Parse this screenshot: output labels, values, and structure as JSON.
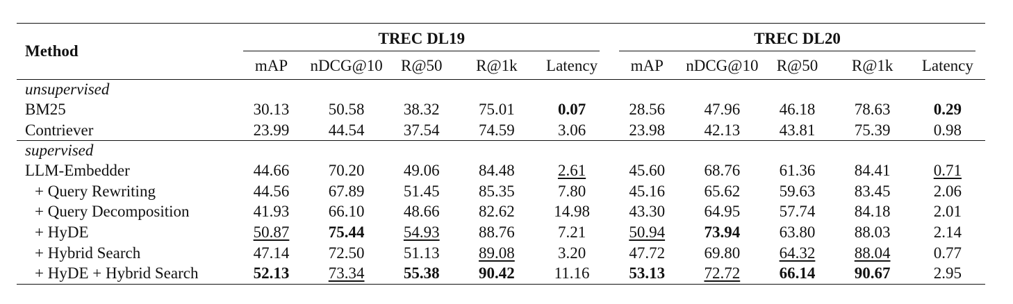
{
  "table": {
    "method_header": "Method",
    "groups": [
      "TREC DL19",
      "TREC DL20"
    ],
    "metrics": [
      "mAP",
      "nDCG@10",
      "R@50",
      "R@1k",
      "Latency",
      "mAP",
      "nDCG@10",
      "R@50",
      "R@1k",
      "Latency"
    ],
    "sections": [
      {
        "name": "unsupervised",
        "rows": [
          {
            "method": "BM25",
            "values": [
              "30.13",
              "50.58",
              "38.32",
              "75.01",
              "0.07",
              "28.56",
              "47.96",
              "46.18",
              "78.63",
              "0.29"
            ],
            "bold": [
              4,
              9
            ],
            "underline": []
          },
          {
            "method": "Contriever",
            "values": [
              "23.99",
              "44.54",
              "37.54",
              "74.59",
              "3.06",
              "23.98",
              "42.13",
              "43.81",
              "75.39",
              "0.98"
            ],
            "bold": [],
            "underline": []
          }
        ]
      },
      {
        "name": "supervised",
        "rows": [
          {
            "method": "LLM-Embedder",
            "values": [
              "44.66",
              "70.20",
              "49.06",
              "84.48",
              "2.61",
              "45.60",
              "68.76",
              "61.36",
              "84.41",
              "0.71"
            ],
            "bold": [],
            "underline": [
              4,
              9
            ]
          },
          {
            "method": "+ Query Rewriting",
            "values": [
              "44.56",
              "67.89",
              "51.45",
              "85.35",
              "7.80",
              "45.16",
              "65.62",
              "59.63",
              "83.45",
              "2.06"
            ],
            "bold": [],
            "underline": []
          },
          {
            "method": "+ Query Decomposition",
            "values": [
              "41.93",
              "66.10",
              "48.66",
              "82.62",
              "14.98",
              "43.30",
              "64.95",
              "57.74",
              "84.18",
              "2.01"
            ],
            "bold": [],
            "underline": []
          },
          {
            "method": "+ HyDE",
            "values": [
              "50.87",
              "75.44",
              "54.93",
              "88.76",
              "7.21",
              "50.94",
              "73.94",
              "63.80",
              "88.03",
              "2.14"
            ],
            "bold": [
              1,
              6
            ],
            "underline": [
              0,
              2,
              5
            ]
          },
          {
            "method": "+ Hybrid Search",
            "values": [
              "47.14",
              "72.50",
              "51.13",
              "89.08",
              "3.20",
              "47.72",
              "69.80",
              "64.32",
              "88.04",
              "0.77"
            ],
            "bold": [],
            "underline": [
              3,
              7,
              8
            ]
          },
          {
            "method": "+ HyDE + Hybrid Search",
            "values": [
              "52.13",
              "73.34",
              "55.38",
              "90.42",
              "11.16",
              "53.13",
              "72.72",
              "66.14",
              "90.67",
              "2.95"
            ],
            "bold": [
              0,
              2,
              3,
              5,
              7,
              8
            ],
            "underline": [
              1,
              6
            ]
          }
        ]
      }
    ]
  }
}
